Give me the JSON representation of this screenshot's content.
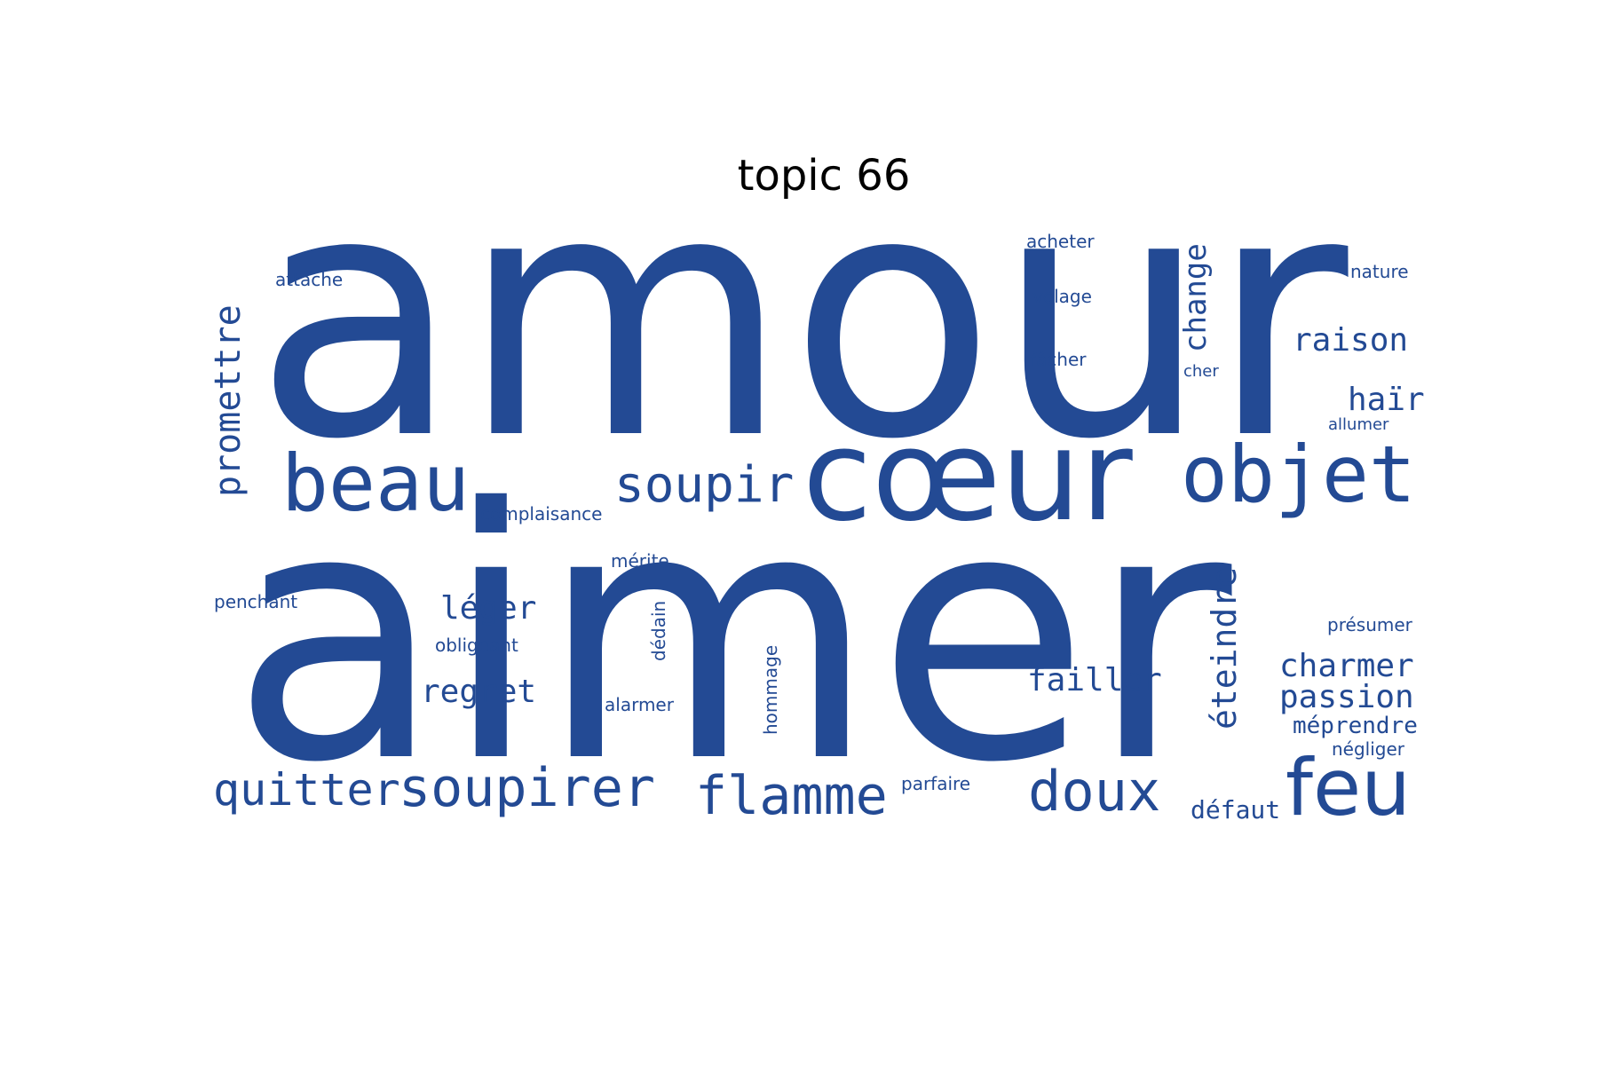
{
  "title": "topic 66",
  "colors": {
    "word": "#234A94",
    "title": "#000000",
    "background": "#ffffff"
  },
  "words": [
    {
      "id": "amour",
      "text": "amour"
    },
    {
      "id": "aimer",
      "text": "aimer"
    },
    {
      "id": "coeur",
      "text": "cœur"
    },
    {
      "id": "objet",
      "text": "objet"
    },
    {
      "id": "beau",
      "text": "beau"
    },
    {
      "id": "soupir",
      "text": "soupir"
    },
    {
      "id": "feu",
      "text": "feu"
    },
    {
      "id": "flamme",
      "text": "flamme"
    },
    {
      "id": "soupirer",
      "text": "soupirer"
    },
    {
      "id": "doux",
      "text": "doux"
    },
    {
      "id": "quitter",
      "text": "quitter"
    },
    {
      "id": "promettre",
      "text": "promettre"
    },
    {
      "id": "eteindre",
      "text": "éteindre"
    },
    {
      "id": "change",
      "text": "change"
    },
    {
      "id": "raison",
      "text": "raison"
    },
    {
      "id": "hair",
      "text": "haïr"
    },
    {
      "id": "charmer",
      "text": "charmer"
    },
    {
      "id": "passion",
      "text": "passion"
    },
    {
      "id": "failler",
      "text": "failler"
    },
    {
      "id": "leger",
      "text": "léger"
    },
    {
      "id": "regret",
      "text": "regret"
    },
    {
      "id": "meprendre",
      "text": "méprendre"
    },
    {
      "id": "defaut",
      "text": "défaut"
    },
    {
      "id": "negliger",
      "text": "négliger"
    },
    {
      "id": "presumer",
      "text": "présumer"
    },
    {
      "id": "allumer",
      "text": "allumer"
    },
    {
      "id": "cher",
      "text": "cher"
    },
    {
      "id": "facher",
      "text": "fâcher"
    },
    {
      "id": "volage",
      "text": "volage"
    },
    {
      "id": "acheter",
      "text": "acheter"
    },
    {
      "id": "nature",
      "text": "nature"
    },
    {
      "id": "attache",
      "text": "attache"
    },
    {
      "id": "complaisance",
      "text": "complaisance"
    },
    {
      "id": "merite",
      "text": "mérite"
    },
    {
      "id": "penchant",
      "text": "penchant"
    },
    {
      "id": "obligeant",
      "text": "obligeant"
    },
    {
      "id": "dedain",
      "text": "dédain"
    },
    {
      "id": "hommage",
      "text": "hommage"
    },
    {
      "id": "alarmer",
      "text": "alarmer"
    },
    {
      "id": "parfaire",
      "text": "parfaire"
    }
  ]
}
